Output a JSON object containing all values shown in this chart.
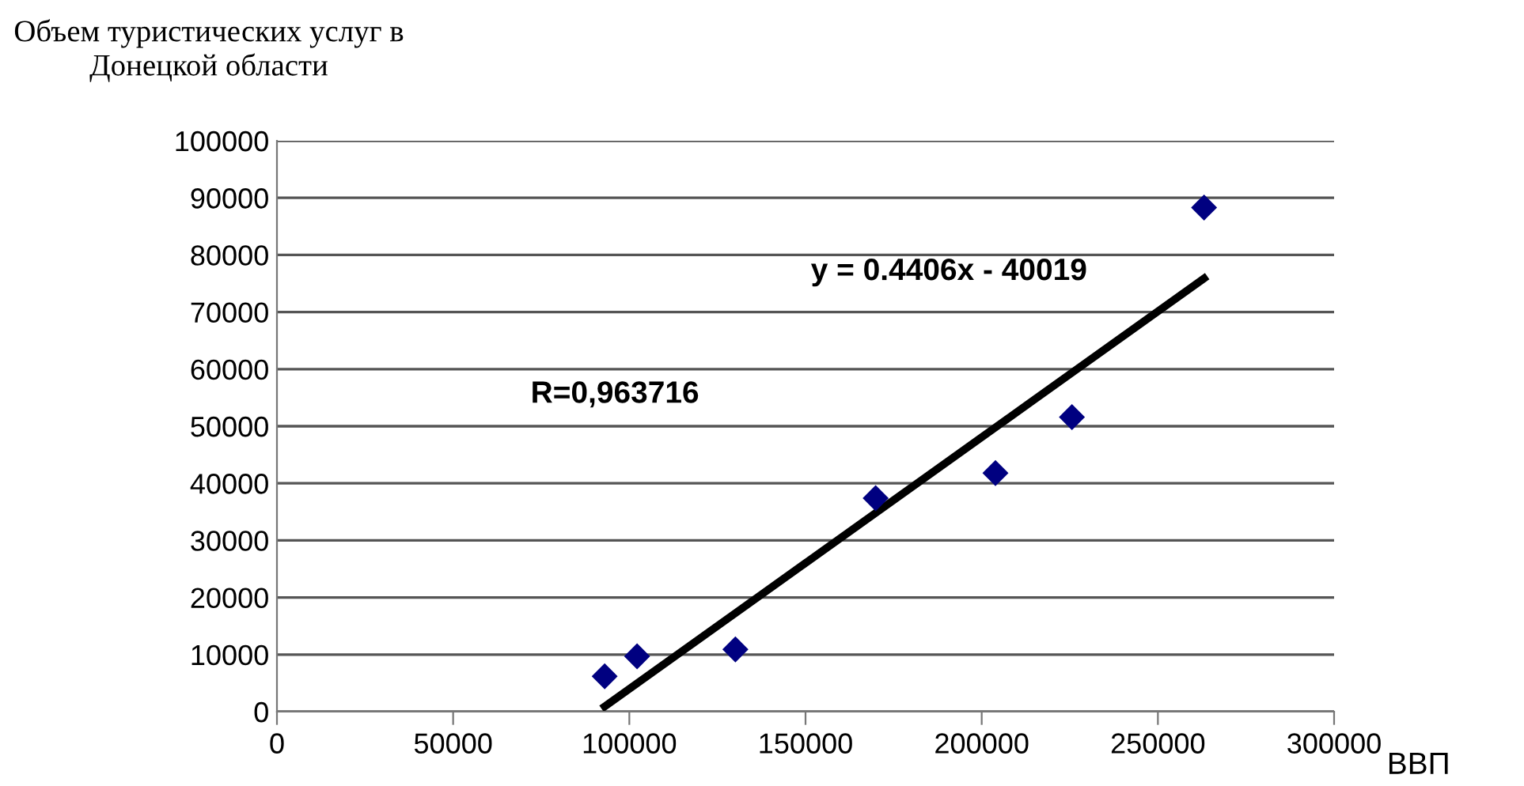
{
  "chart_data": {
    "type": "scatter",
    "ylabel": "Объем туристических услуг в\nДонецкой области",
    "xlabel": "ВВП",
    "annotations": [
      "y = 0.4406x - 40019",
      "R=0,963716"
    ],
    "x": [
      93000,
      102200,
      130100,
      169900,
      203900,
      225600,
      263100
    ],
    "series": [
      {
        "color": "#000080",
        "marker": "diamond",
        "values": [
          6200,
          9700,
          10900,
          37400,
          41800,
          51600,
          88300
        ]
      },
      {
        "type": "line",
        "color": "#000000",
        "line_style": "solid",
        "marker": "none",
        "x": [
          93000,
          263100
        ],
        "values": [
          900,
          75900
        ]
      }
    ],
    "xlim": [
      0,
      300000
    ],
    "xticks": [
      0,
      50000,
      100000,
      150000,
      200000,
      250000,
      300000
    ],
    "ylim": [
      0,
      100000
    ],
    "yticks": [
      0,
      10000,
      20000,
      30000,
      40000,
      50000,
      60000,
      70000,
      80000,
      90000,
      100000
    ],
    "grid": "y",
    "legend": false
  }
}
